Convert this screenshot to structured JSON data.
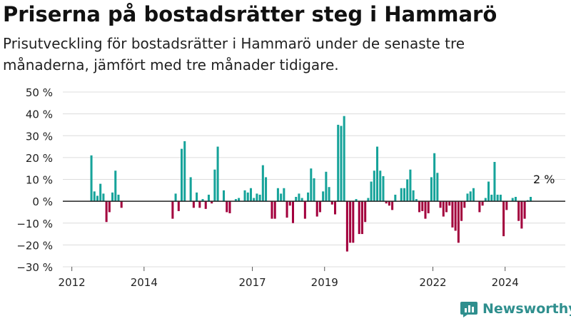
{
  "title": "Priserna på bostadsrätter steg i Hammarö",
  "subtitle": "Prisutveckling för bostadsrätter i Hammarö under de senaste tre månaderna, jämfört med tre månader tidigare.",
  "brand": {
    "name": "Newsworthy",
    "icon": "bar-chart-logo-icon"
  },
  "colors": {
    "positive": "#16a39a",
    "negative": "#a3003d",
    "grid": "#dcdcdc",
    "zero_line": "#222222"
  },
  "chart_data": {
    "type": "bar",
    "title": "Priserna på bostadsrätter steg i Hammarö",
    "subtitle": "Prisutveckling för bostadsrätter i Hammarö under de senaste tre månaderna, jämfört med tre månader tidigare.",
    "unit": "%",
    "ylim": [
      -30,
      50
    ],
    "yticks": [
      -30,
      -20,
      -10,
      0,
      10,
      20,
      30,
      40,
      50
    ],
    "ytick_labels": [
      "−30 %",
      "−20 %",
      "−10 %",
      "0 %",
      "10 %",
      "20 %",
      "30 %",
      "40 %",
      "50 %"
    ],
    "xlim": [
      "2011-10",
      "2025-09"
    ],
    "xticks": [
      {
        "date": "2012-01",
        "label": "2012"
      },
      {
        "date": "2014-01",
        "label": "2014"
      },
      {
        "date": "2017-01",
        "label": "2017"
      },
      {
        "date": "2019-01",
        "label": "2019"
      },
      {
        "date": "2022-01",
        "label": "2022"
      },
      {
        "date": "2024-01",
        "label": "2024"
      }
    ],
    "grid": true,
    "annotation": {
      "text": "2 %",
      "date": "2025-01",
      "value": 2
    },
    "series": [
      {
        "points": [
          {
            "date": "2012-07",
            "value": 21
          },
          {
            "date": "2012-08",
            "value": 4.5
          },
          {
            "date": "2012-09",
            "value": 2.5
          },
          {
            "date": "2012-10",
            "value": 8
          },
          {
            "date": "2012-11",
            "value": 3.5
          },
          {
            "date": "2012-12",
            "value": -9.5
          },
          {
            "date": "2013-01",
            "value": -5
          },
          {
            "date": "2013-02",
            "value": 4
          },
          {
            "date": "2013-03",
            "value": 14
          },
          {
            "date": "2013-04",
            "value": 3
          },
          {
            "date": "2013-05",
            "value": -3
          },
          {
            "date": "2014-10",
            "value": -8
          },
          {
            "date": "2014-11",
            "value": 3.5
          },
          {
            "date": "2014-12",
            "value": -4.5
          },
          {
            "date": "2015-01",
            "value": 24
          },
          {
            "date": "2015-02",
            "value": 27.5
          },
          {
            "date": "2015-04",
            "value": 11
          },
          {
            "date": "2015-05",
            "value": -3
          },
          {
            "date": "2015-06",
            "value": 4
          },
          {
            "date": "2015-07",
            "value": -3
          },
          {
            "date": "2015-08",
            "value": 1
          },
          {
            "date": "2015-09",
            "value": -3.5
          },
          {
            "date": "2015-10",
            "value": 3
          },
          {
            "date": "2015-11",
            "value": -1
          },
          {
            "date": "2015-12",
            "value": 14.5
          },
          {
            "date": "2016-01",
            "value": 25
          },
          {
            "date": "2016-03",
            "value": 5
          },
          {
            "date": "2016-04",
            "value": -5
          },
          {
            "date": "2016-05",
            "value": -5.5
          },
          {
            "date": "2016-07",
            "value": 1
          },
          {
            "date": "2016-08",
            "value": 1.5
          },
          {
            "date": "2016-10",
            "value": 5
          },
          {
            "date": "2016-11",
            "value": 4
          },
          {
            "date": "2016-12",
            "value": 6
          },
          {
            "date": "2017-01",
            "value": 1.5
          },
          {
            "date": "2017-02",
            "value": 3.5
          },
          {
            "date": "2017-03",
            "value": 3
          },
          {
            "date": "2017-04",
            "value": 16.5
          },
          {
            "date": "2017-05",
            "value": 11
          },
          {
            "date": "2017-07",
            "value": -8
          },
          {
            "date": "2017-08",
            "value": -8
          },
          {
            "date": "2017-09",
            "value": 6
          },
          {
            "date": "2017-10",
            "value": 3.5
          },
          {
            "date": "2017-11",
            "value": 6
          },
          {
            "date": "2017-12",
            "value": -7.5
          },
          {
            "date": "2018-01",
            "value": -2
          },
          {
            "date": "2018-02",
            "value": -10
          },
          {
            "date": "2018-03",
            "value": 2
          },
          {
            "date": "2018-04",
            "value": 3.5
          },
          {
            "date": "2018-05",
            "value": 1.5
          },
          {
            "date": "2018-06",
            "value": -8
          },
          {
            "date": "2018-07",
            "value": 4
          },
          {
            "date": "2018-08",
            "value": 15
          },
          {
            "date": "2018-09",
            "value": 10.5
          },
          {
            "date": "2018-10",
            "value": -7
          },
          {
            "date": "2018-11",
            "value": -5
          },
          {
            "date": "2018-12",
            "value": 4.5
          },
          {
            "date": "2019-01",
            "value": 13.5
          },
          {
            "date": "2019-02",
            "value": 6.5
          },
          {
            "date": "2019-03",
            "value": -1.5
          },
          {
            "date": "2019-04",
            "value": -6
          },
          {
            "date": "2019-05",
            "value": 35
          },
          {
            "date": "2019-06",
            "value": 34.5
          },
          {
            "date": "2019-07",
            "value": 39
          },
          {
            "date": "2019-08",
            "value": -23
          },
          {
            "date": "2019-09",
            "value": -19
          },
          {
            "date": "2019-10",
            "value": -19
          },
          {
            "date": "2019-11",
            "value": 1
          },
          {
            "date": "2019-12",
            "value": -15
          },
          {
            "date": "2020-01",
            "value": -15
          },
          {
            "date": "2020-02",
            "value": -9.5
          },
          {
            "date": "2020-03",
            "value": 1.5
          },
          {
            "date": "2020-04",
            "value": 9
          },
          {
            "date": "2020-05",
            "value": 14
          },
          {
            "date": "2020-06",
            "value": 25
          },
          {
            "date": "2020-07",
            "value": 14
          },
          {
            "date": "2020-08",
            "value": 11.5
          },
          {
            "date": "2020-09",
            "value": -1
          },
          {
            "date": "2020-10",
            "value": -2
          },
          {
            "date": "2020-11",
            "value": -4
          },
          {
            "date": "2020-12",
            "value": 3
          },
          {
            "date": "2021-02",
            "value": 6
          },
          {
            "date": "2021-03",
            "value": 6
          },
          {
            "date": "2021-04",
            "value": 10
          },
          {
            "date": "2021-05",
            "value": 14.5
          },
          {
            "date": "2021-06",
            "value": 5
          },
          {
            "date": "2021-07",
            "value": 1
          },
          {
            "date": "2021-08",
            "value": -5
          },
          {
            "date": "2021-09",
            "value": -4.5
          },
          {
            "date": "2021-10",
            "value": -8
          },
          {
            "date": "2021-11",
            "value": -5.5
          },
          {
            "date": "2021-12",
            "value": 11
          },
          {
            "date": "2022-01",
            "value": 22
          },
          {
            "date": "2022-02",
            "value": 13
          },
          {
            "date": "2022-03",
            "value": -3
          },
          {
            "date": "2022-04",
            "value": -7
          },
          {
            "date": "2022-05",
            "value": -5
          },
          {
            "date": "2022-06",
            "value": -2
          },
          {
            "date": "2022-07",
            "value": -12
          },
          {
            "date": "2022-08",
            "value": -13.5
          },
          {
            "date": "2022-09",
            "value": -19
          },
          {
            "date": "2022-10",
            "value": -9
          },
          {
            "date": "2022-11",
            "value": -3
          },
          {
            "date": "2022-12",
            "value": 3.5
          },
          {
            "date": "2023-01",
            "value": 4.5
          },
          {
            "date": "2023-02",
            "value": 6
          },
          {
            "date": "2023-04",
            "value": -5
          },
          {
            "date": "2023-05",
            "value": -2
          },
          {
            "date": "2023-06",
            "value": 1.5
          },
          {
            "date": "2023-07",
            "value": 9
          },
          {
            "date": "2023-08",
            "value": 3
          },
          {
            "date": "2023-09",
            "value": 18
          },
          {
            "date": "2023-10",
            "value": 3
          },
          {
            "date": "2023-11",
            "value": 3
          },
          {
            "date": "2023-12",
            "value": -16
          },
          {
            "date": "2024-01",
            "value": -4
          },
          {
            "date": "2024-03",
            "value": 1.5
          },
          {
            "date": "2024-04",
            "value": 2
          },
          {
            "date": "2024-05",
            "value": -9
          },
          {
            "date": "2024-06",
            "value": -12.5
          },
          {
            "date": "2024-07",
            "value": -8
          },
          {
            "date": "2024-08",
            "value": 0.5
          },
          {
            "date": "2024-09",
            "value": 2
          }
        ]
      }
    ]
  }
}
